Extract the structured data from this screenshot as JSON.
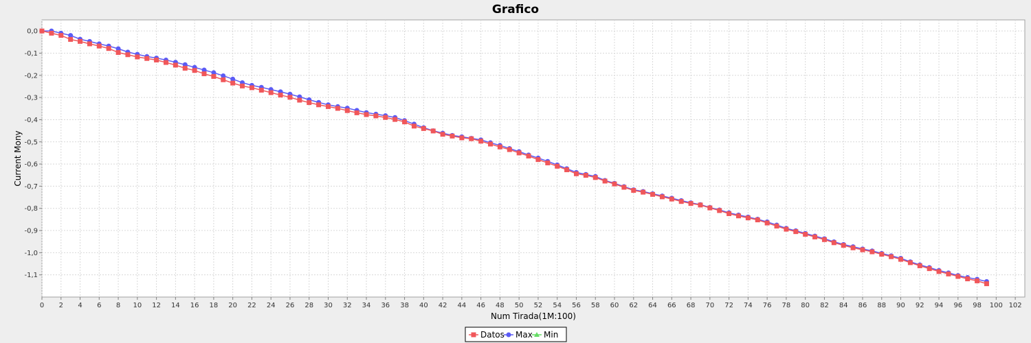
{
  "chart_data": {
    "type": "line",
    "title": "Grafico",
    "xlabel": "Num Tirada(1M:100)",
    "ylabel": "Current Mony",
    "xlim": [
      0,
      103
    ],
    "ylim": [
      -1.2,
      0.05
    ],
    "x_ticks": [
      0,
      2,
      4,
      6,
      8,
      10,
      12,
      14,
      16,
      18,
      20,
      22,
      24,
      26,
      28,
      30,
      32,
      34,
      36,
      38,
      40,
      42,
      44,
      46,
      48,
      50,
      52,
      54,
      56,
      58,
      60,
      62,
      64,
      66,
      68,
      70,
      72,
      74,
      76,
      78,
      80,
      82,
      84,
      86,
      88,
      90,
      92,
      94,
      96,
      98,
      100,
      102
    ],
    "y_ticks": [
      {
        "value": 0.0,
        "label": "0,0"
      },
      {
        "value": -0.1,
        "label": "-0,1"
      },
      {
        "value": -0.2,
        "label": "-0,2"
      },
      {
        "value": -0.3,
        "label": "-0,3"
      },
      {
        "value": -0.4,
        "label": "-0,4"
      },
      {
        "value": -0.5,
        "label": "-0,5"
      },
      {
        "value": -0.6,
        "label": "-0,6"
      },
      {
        "value": -0.7,
        "label": "-0,7"
      },
      {
        "value": -0.8,
        "label": "-0,8"
      },
      {
        "value": -0.9,
        "label": "-0,9"
      },
      {
        "value": -1.0,
        "label": "-1,0"
      },
      {
        "value": -1.1,
        "label": "-1,1"
      }
    ],
    "grid": true,
    "legend_position": "bottom-center",
    "series": [
      {
        "name": "Datos",
        "color": "#f0575a",
        "marker": "square",
        "x": [
          0,
          1,
          2,
          3,
          4,
          5,
          6,
          7,
          8,
          9,
          10,
          11,
          12,
          13,
          14,
          15,
          16,
          17,
          18,
          19,
          20,
          21,
          22,
          23,
          24,
          25,
          26,
          27,
          28,
          29,
          30,
          31,
          32,
          33,
          34,
          35,
          36,
          37,
          38,
          39,
          40,
          41,
          42,
          43,
          44,
          45,
          46,
          47,
          48,
          49,
          50,
          51,
          52,
          53,
          54,
          55,
          56,
          57,
          58,
          59,
          60,
          61,
          62,
          63,
          64,
          65,
          66,
          67,
          68,
          69,
          70,
          71,
          72,
          73,
          74,
          75,
          76,
          77,
          78,
          79,
          80,
          81,
          82,
          83,
          84,
          85,
          86,
          87,
          88,
          89,
          90,
          91,
          92,
          93,
          94,
          95,
          96,
          97,
          98,
          99
        ],
        "y": [
          0.0,
          -0.01,
          -0.02,
          -0.038,
          -0.047,
          -0.058,
          -0.068,
          -0.079,
          -0.097,
          -0.107,
          -0.117,
          -0.124,
          -0.131,
          -0.142,
          -0.154,
          -0.168,
          -0.178,
          -0.193,
          -0.205,
          -0.22,
          -0.235,
          -0.248,
          -0.256,
          -0.267,
          -0.278,
          -0.289,
          -0.299,
          -0.312,
          -0.323,
          -0.333,
          -0.341,
          -0.349,
          -0.359,
          -0.369,
          -0.377,
          -0.383,
          -0.39,
          -0.399,
          -0.41,
          -0.429,
          -0.44,
          -0.451,
          -0.466,
          -0.474,
          -0.482,
          -0.486,
          -0.497,
          -0.51,
          -0.523,
          -0.535,
          -0.55,
          -0.564,
          -0.58,
          -0.595,
          -0.61,
          -0.626,
          -0.644,
          -0.651,
          -0.661,
          -0.677,
          -0.69,
          -0.705,
          -0.719,
          -0.727,
          -0.737,
          -0.748,
          -0.758,
          -0.769,
          -0.778,
          -0.785,
          -0.798,
          -0.81,
          -0.824,
          -0.834,
          -0.843,
          -0.852,
          -0.866,
          -0.88,
          -0.894,
          -0.905,
          -0.917,
          -0.929,
          -0.941,
          -0.955,
          -0.967,
          -0.978,
          -0.987,
          -0.996,
          -1.007,
          -1.018,
          -1.03,
          -1.045,
          -1.059,
          -1.072,
          -1.085,
          -1.096,
          -1.107,
          -1.118,
          -1.127,
          -1.14
        ]
      },
      {
        "name": "Max",
        "color": "#5b5bf5",
        "marker": "circle",
        "x": [
          0,
          1,
          2,
          3,
          4,
          5,
          6,
          7,
          8,
          9,
          10,
          11,
          12,
          13,
          14,
          15,
          16,
          17,
          18,
          19,
          20,
          21,
          22,
          23,
          24,
          25,
          26,
          27,
          28,
          29,
          30,
          31,
          32,
          33,
          34,
          35,
          36,
          37,
          38,
          39,
          40,
          41,
          42,
          43,
          44,
          45,
          46,
          47,
          48,
          49,
          50,
          51,
          52,
          53,
          54,
          55,
          56,
          57,
          58,
          59,
          60,
          61,
          62,
          63,
          64,
          65,
          66,
          67,
          68,
          69,
          70,
          71,
          72,
          73,
          74,
          75,
          76,
          77,
          78,
          79,
          80,
          81,
          82,
          83,
          84,
          85,
          86,
          87,
          88,
          89,
          90,
          91,
          92,
          93,
          94,
          95,
          96,
          97,
          98,
          99
        ],
        "y": [
          0.0,
          0.0,
          -0.01,
          -0.02,
          -0.037,
          -0.047,
          -0.058,
          -0.068,
          -0.08,
          -0.095,
          -0.105,
          -0.115,
          -0.122,
          -0.131,
          -0.141,
          -0.152,
          -0.164,
          -0.176,
          -0.188,
          -0.202,
          -0.217,
          -0.233,
          -0.245,
          -0.254,
          -0.264,
          -0.274,
          -0.285,
          -0.297,
          -0.31,
          -0.322,
          -0.333,
          -0.341,
          -0.348,
          -0.358,
          -0.368,
          -0.375,
          -0.382,
          -0.39,
          -0.404,
          -0.42,
          -0.436,
          -0.45,
          -0.461,
          -0.471,
          -0.477,
          -0.484,
          -0.491,
          -0.504,
          -0.516,
          -0.53,
          -0.544,
          -0.559,
          -0.573,
          -0.588,
          -0.604,
          -0.621,
          -0.638,
          -0.647,
          -0.656,
          -0.674,
          -0.687,
          -0.702,
          -0.716,
          -0.724,
          -0.734,
          -0.744,
          -0.754,
          -0.765,
          -0.775,
          -0.783,
          -0.796,
          -0.807,
          -0.82,
          -0.83,
          -0.839,
          -0.849,
          -0.861,
          -0.875,
          -0.89,
          -0.901,
          -0.913,
          -0.925,
          -0.937,
          -0.951,
          -0.963,
          -0.973,
          -0.983,
          -0.992,
          -1.003,
          -1.014,
          -1.025,
          -1.041,
          -1.055,
          -1.067,
          -1.08,
          -1.091,
          -1.103,
          -1.112,
          -1.12,
          -1.13
        ]
      },
      {
        "name": "Min",
        "color": "#66dd66",
        "marker": "triangle",
        "x": [],
        "y": []
      }
    ]
  }
}
